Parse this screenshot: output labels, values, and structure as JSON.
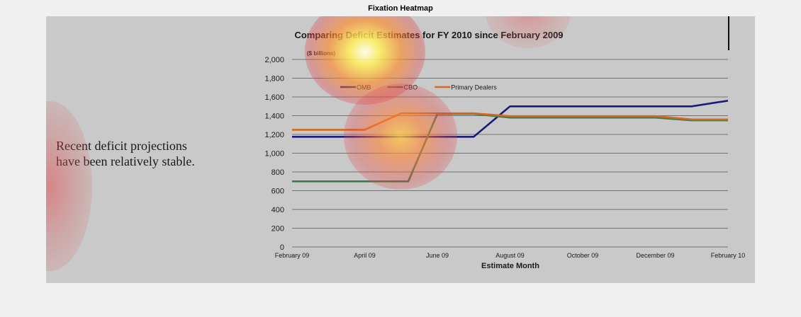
{
  "window": {
    "heading": "Fixation Heatmap"
  },
  "stimulus": {
    "side_text": "Recent deficit projections have been relatively stable."
  },
  "colors": {
    "omb": "#1b1b78",
    "cbo": "#3f7a4a",
    "primary_dealers": "#d2691e",
    "background": "#c9c9c9",
    "gridline": "#555555",
    "heat_hot": "#fff060",
    "heat_mid": "#ff8a2a",
    "heat_cool": "#e03030"
  },
  "chart_data": {
    "type": "line",
    "title": "Comparing Deficit Estimates for FY 2010 since February 2009",
    "unit_label": "($ billions)",
    "xlabel": "Estimate Month",
    "ylabel": "",
    "x_tick_labels": [
      "February 09",
      "April 09",
      "June 09",
      "August 09",
      "October 09",
      "December 09",
      "February 10"
    ],
    "xlim": [
      0,
      12
    ],
    "y_ticks": [
      0,
      200,
      400,
      600,
      800,
      1000,
      1200,
      1400,
      1600,
      1800,
      2000
    ],
    "y_tick_labels": [
      "0",
      "200",
      "400",
      "600",
      "800",
      "1,000",
      "1,200",
      "1,400",
      "1,600",
      "1,800",
      "2,000"
    ],
    "ylim": [
      0,
      2000
    ],
    "grid": true,
    "legend_position": "top-left",
    "series": [
      {
        "name": "OMB",
        "color_key": "omb",
        "points": [
          [
            0,
            1175
          ],
          [
            2,
            1175
          ],
          [
            3,
            1175
          ],
          [
            4,
            1175
          ],
          [
            5,
            1175
          ],
          [
            6,
            1500
          ],
          [
            7,
            1500
          ],
          [
            8,
            1500
          ],
          [
            9,
            1500
          ],
          [
            10,
            1500
          ],
          [
            11,
            1500
          ],
          [
            12,
            1560
          ]
        ]
      },
      {
        "name": "CBO",
        "color_key": "cbo",
        "points": [
          [
            0,
            700
          ],
          [
            2,
            700
          ],
          [
            3.2,
            700
          ],
          [
            4,
            1420
          ],
          [
            5,
            1420
          ],
          [
            6,
            1380
          ],
          [
            7,
            1380
          ],
          [
            8,
            1380
          ],
          [
            9,
            1380
          ],
          [
            10,
            1380
          ],
          [
            11,
            1350
          ],
          [
            12,
            1350
          ]
        ]
      },
      {
        "name": "Primary Dealers",
        "color_key": "primary_dealers",
        "points": [
          [
            0,
            1250
          ],
          [
            2,
            1250
          ],
          [
            3,
            1425
          ],
          [
            4,
            1425
          ],
          [
            5,
            1425
          ],
          [
            6,
            1395
          ],
          [
            7,
            1395
          ],
          [
            8,
            1395
          ],
          [
            9,
            1395
          ],
          [
            10,
            1395
          ],
          [
            11,
            1360
          ],
          [
            12,
            1360
          ]
        ]
      }
    ],
    "heatmap_overlay": {
      "fixations": [
        {
          "region": "chart title",
          "intensity": 1.0
        },
        {
          "region": "series jump near June 09",
          "intensity": 0.75
        },
        {
          "region": "top edge near August 09",
          "intensity": 0.35
        },
        {
          "region": "left margin near side text",
          "intensity": 0.5
        }
      ]
    }
  }
}
